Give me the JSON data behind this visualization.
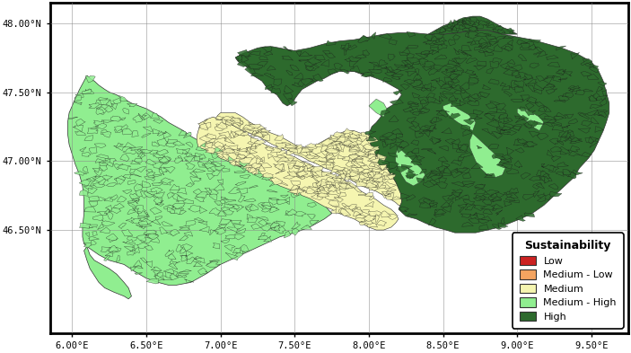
{
  "xlim": [
    5.85,
    9.75
  ],
  "ylim": [
    45.75,
    48.15
  ],
  "xticks": [
    6.0,
    6.5,
    7.0,
    7.5,
    8.0,
    8.5,
    9.0,
    9.5
  ],
  "yticks": [
    46.5,
    47.0,
    47.5,
    48.0
  ],
  "grid_color": "#888888",
  "background_color": "#ffffff",
  "border_color": "#000000",
  "legend_title": "Sustainability",
  "legend_entries": [
    "Low",
    "Medium - Low",
    "Medium",
    "Medium - High",
    "High"
  ],
  "legend_colors": [
    "#cc2222",
    "#f4a460",
    "#f5f5b0",
    "#90ee90",
    "#2d6a2d"
  ],
  "colors": {
    "low": "#cc2222",
    "medium_low": "#f4a460",
    "medium": "#f5f5b0",
    "medium_high": "#90ee90",
    "high": "#2d6a2d"
  },
  "outer_background": "#ffffff",
  "boundary_color": "#333333",
  "boundary_lw": 0.3
}
